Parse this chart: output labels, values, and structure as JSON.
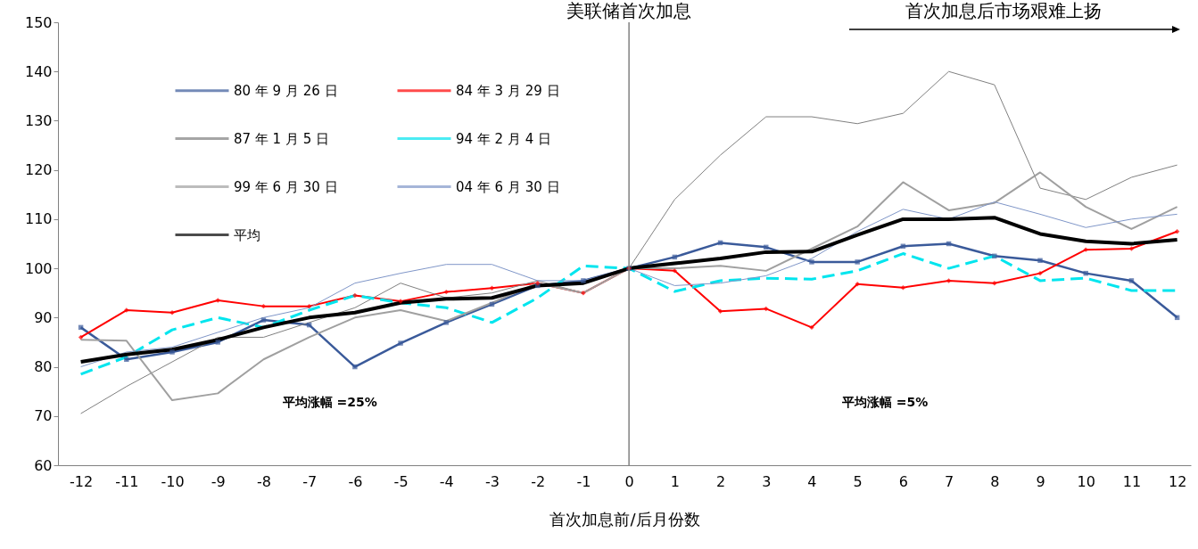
{
  "chart_data": {
    "type": "line",
    "xlabel": "首次加息前/后月份数",
    "x": [
      -12,
      -11,
      -10,
      -9,
      -8,
      -7,
      -6,
      -5,
      -4,
      -3,
      -2,
      -1,
      0,
      1,
      2,
      3,
      4,
      5,
      6,
      7,
      8,
      9,
      10,
      11,
      12
    ],
    "xlim": [
      -12.5,
      12.3
    ],
    "xticks": [
      -12,
      -11,
      -10,
      -9,
      -8,
      -7,
      -6,
      -5,
      -4,
      -3,
      -2,
      -1,
      0,
      1,
      2,
      3,
      4,
      5,
      6,
      7,
      8,
      9,
      10,
      11,
      12
    ],
    "ylim": [
      60,
      150
    ],
    "yticks": [
      60,
      70,
      80,
      90,
      100,
      110,
      120,
      130,
      140,
      150
    ],
    "grid": false,
    "legend": "top left",
    "series": [
      {
        "name": "80 年 9 月 26 日",
        "color": "#3a5a9a",
        "marker": "square",
        "line_style": "solid",
        "values": [
          88,
          81.5,
          83,
          85,
          89.5,
          88.5,
          80,
          84.8,
          89,
          92.7,
          96.5,
          97.5,
          100,
          102.3,
          105.2,
          104.3,
          101.3,
          101.3,
          104.5,
          105,
          102.5,
          101.6,
          99,
          97.5,
          90
        ]
      },
      {
        "name": "84 年 3 月 29 日",
        "color": "#ff0000",
        "marker": "diamond",
        "line_style": "solid",
        "values": [
          86,
          91.5,
          91,
          93.5,
          92.3,
          92.3,
          94.5,
          93.3,
          95.2,
          96,
          97,
          95,
          100,
          99.5,
          91.3,
          91.8,
          88,
          96.8,
          96.1,
          97.5,
          97,
          99,
          103.8,
          104,
          107.5
        ]
      },
      {
        "name": "87 年 1 月 5 日",
        "color": "#808080",
        "line_style": "solid",
        "values": [
          70.5,
          76,
          81,
          86,
          86,
          89,
          92,
          97,
          94,
          95,
          97.5,
          95,
          100,
          114,
          123,
          130.8,
          130.8,
          129.4,
          131.5,
          140,
          137.3,
          116.3,
          114,
          118.5,
          121
        ]
      },
      {
        "name": "94 年 2 月 4 日",
        "color": "#00e5ee",
        "line_style": "dashed",
        "values": [
          78.5,
          82,
          87.5,
          90,
          88,
          91.5,
          94.5,
          93,
          92,
          89,
          94,
          100.5,
          100,
          95.3,
          97.5,
          98,
          97.8,
          99.5,
          103,
          100,
          102.5,
          97.5,
          98,
          95.5,
          95.5
        ]
      },
      {
        "name": "99 年 6 月 30 日",
        "color": "#a0a0a0",
        "line_style": "solid",
        "values": [
          85.5,
          85.3,
          73.2,
          74.6,
          81.5,
          86,
          90,
          91.5,
          89.3,
          93,
          97,
          95,
          100,
          100,
          100.5,
          99.5,
          104,
          108.5,
          117.5,
          111.8,
          113.3,
          119.5,
          112.5,
          108,
          112.5
        ]
      },
      {
        "name": "04 年 6 月 30 日",
        "color": "#7f96c8",
        "line_style": "solid",
        "values": [
          80,
          83,
          84,
          87,
          90,
          92,
          97,
          99,
          100.8,
          100.8,
          97.5,
          97.5,
          100,
          96.5,
          97,
          98.5,
          102,
          107.5,
          112,
          110,
          113.5,
          111,
          108.3,
          110,
          111
        ]
      },
      {
        "name": "平均",
        "color": "#000000",
        "line_style": "solid",
        "values": [
          81,
          82.5,
          83.5,
          85.5,
          88,
          90,
          91,
          93,
          93.8,
          94,
          96.5,
          97,
          100,
          101,
          102,
          103.3,
          103.4,
          106.8,
          110,
          110,
          110.3,
          107,
          105.5,
          105,
          105.8
        ]
      }
    ],
    "ref_lines": [
      {
        "axis": "x",
        "value": 0,
        "label": "美联储首次加息",
        "color": "#808080"
      }
    ],
    "annotations": [
      "平均涨幅 =25%",
      "平均涨幅 =5%",
      "首次加息后市场艰难上扬"
    ]
  }
}
